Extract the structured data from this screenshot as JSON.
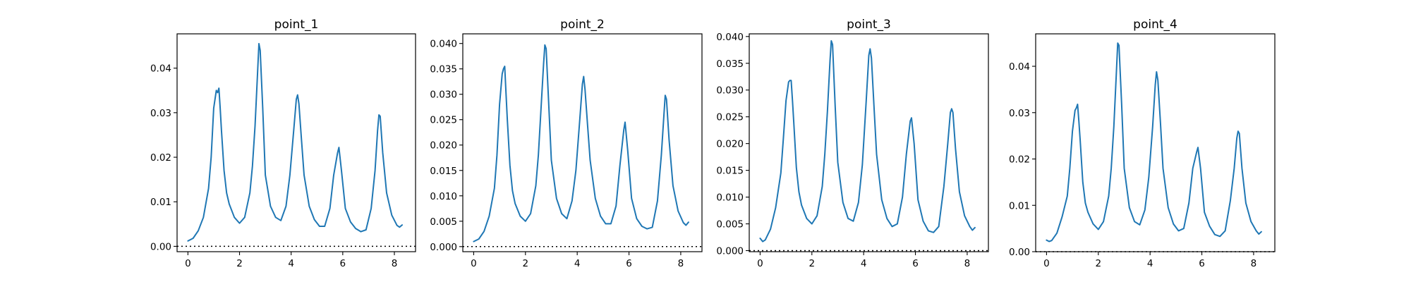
{
  "colors": {
    "line": "#1f77b4",
    "zero_line": "#000000"
  },
  "chart_data": [
    {
      "type": "line",
      "title": "point_1",
      "xlim": [
        -0.42,
        8.82
      ],
      "ylim": [
        -0.0012,
        0.0477
      ],
      "xticks": [
        0,
        2,
        4,
        6,
        8
      ],
      "xtick_labels": [
        "0",
        "2",
        "4",
        "6",
        "8"
      ],
      "yticks": [
        0.0,
        0.01,
        0.02,
        0.03,
        0.04
      ],
      "ytick_labels": [
        "0.00",
        "0.01",
        "0.02",
        "0.03",
        "0.04"
      ],
      "reference_line": {
        "y": 0,
        "style": "dotted"
      },
      "grid": false,
      "series": [
        {
          "x": [
            0,
            0.2,
            0.4,
            0.6,
            0.8,
            0.9,
            1.0,
            1.1,
            1.15,
            1.2,
            1.25,
            1.3,
            1.4,
            1.5,
            1.6,
            1.8,
            2.0,
            2.2,
            2.4,
            2.5,
            2.6,
            2.7,
            2.75,
            2.8,
            2.9,
            3.0,
            3.2,
            3.4,
            3.6,
            3.8,
            3.95,
            4.1,
            4.2,
            4.25,
            4.3,
            4.4,
            4.5,
            4.7,
            4.9,
            5.1,
            5.3,
            5.5,
            5.65,
            5.8,
            5.85,
            5.95,
            6.1,
            6.3,
            6.5,
            6.7,
            6.9,
            7.1,
            7.25,
            7.35,
            7.4,
            7.45,
            7.55,
            7.7,
            7.9,
            8.1,
            8.2,
            8.3
          ],
          "y": [
            0.0012,
            0.0018,
            0.0035,
            0.0065,
            0.013,
            0.02,
            0.031,
            0.035,
            0.0345,
            0.0355,
            0.031,
            0.026,
            0.017,
            0.012,
            0.0095,
            0.0065,
            0.0052,
            0.0065,
            0.012,
            0.018,
            0.027,
            0.039,
            0.0455,
            0.044,
            0.031,
            0.016,
            0.009,
            0.0065,
            0.0058,
            0.009,
            0.016,
            0.026,
            0.033,
            0.034,
            0.032,
            0.024,
            0.016,
            0.009,
            0.006,
            0.0045,
            0.0045,
            0.0085,
            0.016,
            0.021,
            0.0222,
            0.017,
            0.0085,
            0.0055,
            0.004,
            0.0033,
            0.0037,
            0.0085,
            0.017,
            0.026,
            0.0295,
            0.0292,
            0.021,
            0.012,
            0.007,
            0.0047,
            0.0043,
            0.0048
          ]
        }
      ]
    },
    {
      "type": "line",
      "title": "point_2",
      "xlim": [
        -0.42,
        8.82
      ],
      "ylim": [
        -0.001,
        0.0419
      ],
      "xticks": [
        0,
        2,
        4,
        6,
        8
      ],
      "xtick_labels": [
        "0",
        "2",
        "4",
        "6",
        "8"
      ],
      "yticks": [
        0.0,
        0.005,
        0.01,
        0.015,
        0.02,
        0.025,
        0.03,
        0.035,
        0.04
      ],
      "ytick_labels": [
        "0.000",
        "0.005",
        "0.010",
        "0.015",
        "0.020",
        "0.025",
        "0.030",
        "0.035",
        "0.040"
      ],
      "reference_line": {
        "y": 0,
        "style": "dotted"
      },
      "grid": false,
      "series": [
        {
          "x": [
            0,
            0.2,
            0.4,
            0.6,
            0.8,
            0.9,
            1.0,
            1.1,
            1.15,
            1.2,
            1.25,
            1.3,
            1.4,
            1.5,
            1.6,
            1.8,
            2.0,
            2.2,
            2.4,
            2.5,
            2.6,
            2.7,
            2.75,
            2.8,
            2.9,
            3.0,
            3.2,
            3.4,
            3.6,
            3.8,
            3.95,
            4.1,
            4.2,
            4.25,
            4.3,
            4.4,
            4.5,
            4.7,
            4.9,
            5.1,
            5.3,
            5.5,
            5.65,
            5.8,
            5.85,
            5.95,
            6.1,
            6.3,
            6.5,
            6.7,
            6.9,
            7.1,
            7.25,
            7.35,
            7.4,
            7.45,
            7.55,
            7.7,
            7.9,
            8.1,
            8.2,
            8.3
          ],
          "y": [
            0.001,
            0.0015,
            0.003,
            0.006,
            0.0115,
            0.018,
            0.028,
            0.034,
            0.035,
            0.0355,
            0.03,
            0.025,
            0.016,
            0.011,
            0.0085,
            0.006,
            0.005,
            0.0065,
            0.012,
            0.018,
            0.027,
            0.036,
            0.0397,
            0.039,
            0.028,
            0.017,
            0.0095,
            0.0065,
            0.0055,
            0.009,
            0.015,
            0.025,
            0.032,
            0.0335,
            0.031,
            0.024,
            0.017,
            0.0095,
            0.006,
            0.0045,
            0.0045,
            0.008,
            0.016,
            0.023,
            0.0245,
            0.019,
            0.0095,
            0.0055,
            0.004,
            0.0035,
            0.0038,
            0.009,
            0.018,
            0.026,
            0.0298,
            0.029,
            0.021,
            0.012,
            0.007,
            0.0047,
            0.0042,
            0.0048
          ]
        }
      ]
    },
    {
      "type": "line",
      "title": "point_3",
      "xlim": [
        -0.42,
        8.82
      ],
      "ylim": [
        -0.0002,
        0.0405
      ],
      "xticks": [
        0,
        2,
        4,
        6,
        8
      ],
      "xtick_labels": [
        "0",
        "2",
        "4",
        "6",
        "8"
      ],
      "yticks": [
        0.0,
        0.005,
        0.01,
        0.015,
        0.02,
        0.025,
        0.03,
        0.035,
        0.04
      ],
      "ytick_labels": [
        "0.000",
        "0.005",
        "0.010",
        "0.015",
        "0.020",
        "0.025",
        "0.030",
        "0.035",
        "0.040"
      ],
      "reference_line": {
        "y": 0,
        "style": "dotted"
      },
      "grid": false,
      "series": [
        {
          "x": [
            0,
            0.1,
            0.2,
            0.4,
            0.6,
            0.8,
            0.9,
            1.0,
            1.1,
            1.15,
            1.2,
            1.25,
            1.3,
            1.4,
            1.5,
            1.6,
            1.8,
            2.0,
            2.2,
            2.4,
            2.5,
            2.6,
            2.7,
            2.75,
            2.8,
            2.9,
            3.0,
            3.2,
            3.4,
            3.6,
            3.8,
            3.95,
            4.1,
            4.2,
            4.25,
            4.3,
            4.4,
            4.5,
            4.7,
            4.9,
            5.1,
            5.3,
            5.5,
            5.65,
            5.8,
            5.85,
            5.95,
            6.1,
            6.3,
            6.5,
            6.7,
            6.9,
            7.1,
            7.25,
            7.35,
            7.4,
            7.45,
            7.55,
            7.7,
            7.9,
            8.1,
            8.2,
            8.3
          ],
          "y": [
            0.0023,
            0.0017,
            0.002,
            0.004,
            0.008,
            0.0145,
            0.021,
            0.028,
            0.0315,
            0.0318,
            0.0318,
            0.028,
            0.024,
            0.0155,
            0.011,
            0.0085,
            0.006,
            0.005,
            0.0065,
            0.012,
            0.018,
            0.026,
            0.0355,
            0.0392,
            0.0385,
            0.027,
            0.0165,
            0.009,
            0.006,
            0.0055,
            0.009,
            0.016,
            0.028,
            0.0365,
            0.0377,
            0.036,
            0.027,
            0.018,
            0.0095,
            0.006,
            0.0045,
            0.005,
            0.01,
            0.018,
            0.0242,
            0.0248,
            0.02,
            0.0095,
            0.0055,
            0.0037,
            0.0034,
            0.0045,
            0.012,
            0.02,
            0.0258,
            0.0265,
            0.0258,
            0.019,
            0.011,
            0.0065,
            0.0045,
            0.0038,
            0.0043
          ]
        }
      ]
    },
    {
      "type": "line",
      "title": "point_4",
      "xlim": [
        -0.42,
        8.82
      ],
      "ylim": [
        0.0,
        0.047
      ],
      "xticks": [
        0,
        2,
        4,
        6,
        8
      ],
      "xtick_labels": [
        "0",
        "2",
        "4",
        "6",
        "8"
      ],
      "yticks": [
        0.0,
        0.01,
        0.02,
        0.03,
        0.04
      ],
      "ytick_labels": [
        "0.00",
        "0.01",
        "0.02",
        "0.03",
        "0.04"
      ],
      "reference_line": {
        "y": 0,
        "style": "dotted"
      },
      "grid": false,
      "series": [
        {
          "x": [
            0,
            0.1,
            0.2,
            0.4,
            0.6,
            0.8,
            0.9,
            1.0,
            1.1,
            1.15,
            1.2,
            1.25,
            1.3,
            1.4,
            1.5,
            1.6,
            1.8,
            2.0,
            2.2,
            2.4,
            2.5,
            2.6,
            2.7,
            2.75,
            2.8,
            2.9,
            3.0,
            3.2,
            3.4,
            3.6,
            3.8,
            3.95,
            4.1,
            4.2,
            4.25,
            4.3,
            4.4,
            4.5,
            4.7,
            4.9,
            5.1,
            5.3,
            5.5,
            5.65,
            5.8,
            5.85,
            5.95,
            6.1,
            6.3,
            6.5,
            6.7,
            6.9,
            7.1,
            7.25,
            7.35,
            7.4,
            7.45,
            7.55,
            7.7,
            7.9,
            8.1,
            8.2,
            8.3
          ],
          "y": [
            0.0025,
            0.0022,
            0.0024,
            0.004,
            0.0075,
            0.012,
            0.018,
            0.026,
            0.0305,
            0.031,
            0.0318,
            0.028,
            0.024,
            0.015,
            0.0105,
            0.0085,
            0.006,
            0.0048,
            0.0065,
            0.012,
            0.018,
            0.027,
            0.039,
            0.045,
            0.0445,
            0.032,
            0.018,
            0.0095,
            0.0065,
            0.0058,
            0.009,
            0.016,
            0.027,
            0.036,
            0.0388,
            0.037,
            0.028,
            0.018,
            0.0095,
            0.006,
            0.0045,
            0.005,
            0.0105,
            0.018,
            0.0215,
            0.0225,
            0.018,
            0.0085,
            0.0055,
            0.0037,
            0.0033,
            0.0045,
            0.011,
            0.018,
            0.0245,
            0.026,
            0.0255,
            0.018,
            0.0105,
            0.0065,
            0.0045,
            0.0038,
            0.0043
          ]
        }
      ]
    }
  ]
}
